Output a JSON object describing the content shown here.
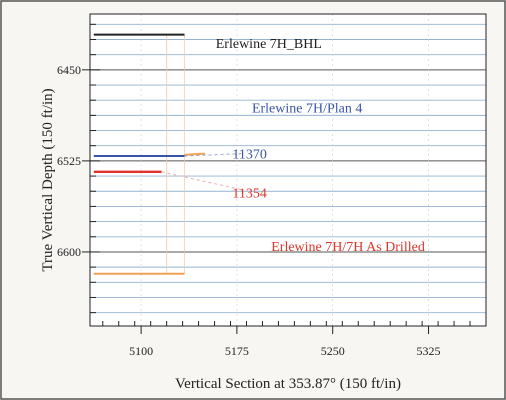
{
  "chart_data": {
    "type": "line",
    "xlabel": "Vertical Section at 353.87° (150 ft/in)",
    "ylabel": "True Vertical Depth (150 ft/in)",
    "xlim": [
      5060,
      5370
    ],
    "ylim": [
      6661,
      6404
    ],
    "y_inverted": true,
    "x_ticks": [
      {
        "value": 5100,
        "label": "5100"
      },
      {
        "value": 5175,
        "label": "5175"
      },
      {
        "value": 5250,
        "label": "5250"
      },
      {
        "value": 5325,
        "label": "5325"
      }
    ],
    "y_ticks": [
      {
        "value": 6450,
        "label": "6450"
      },
      {
        "value": 6525,
        "label": "6525"
      },
      {
        "value": 6600,
        "label": "6600"
      }
    ],
    "grid": true,
    "colors": {
      "gridline": "#7fa6c9",
      "blue": "#3a55a8",
      "red": "#e0342a",
      "orange": "#f0a050",
      "axis": "#222222",
      "frame": "#555555"
    },
    "series": [
      {
        "name": "Erlewine 7H_BHL",
        "color": "#222222",
        "x": [
          5063,
          5134
        ],
        "y": [
          6421,
          6421
        ]
      },
      {
        "name": "Erlewine 7H/Plan 4",
        "color": "#3a55a8",
        "x": [
          5063,
          5134
        ],
        "y": [
          6521,
          6521
        ]
      },
      {
        "name": "Erlewine 7H/7H As Drilled",
        "color": "#e0342a",
        "x": [
          5063,
          5116
        ],
        "y": [
          6534,
          6534
        ]
      },
      {
        "name": "",
        "color": "#f0a050",
        "x": [
          5063,
          5134
        ],
        "y": [
          6618,
          6618
        ]
      }
    ],
    "annotations": [
      {
        "text": "Erlewine 7H_BHL",
        "color": "#222222",
        "x": 5200,
        "y": 6428
      },
      {
        "text": "Erlewine 7H/Plan 4",
        "color": "#3a55a8",
        "x": 5230,
        "y": 6481
      },
      {
        "text": "11370",
        "color": "#3a55a8",
        "x": 5185,
        "y": 6519
      },
      {
        "text": "11354",
        "color": "#e0342a",
        "x": 5185,
        "y": 6551
      },
      {
        "text": "Erlewine 7H/7H As Drilled",
        "color": "#e0342a",
        "x": 5262,
        "y": 6595
      }
    ]
  }
}
